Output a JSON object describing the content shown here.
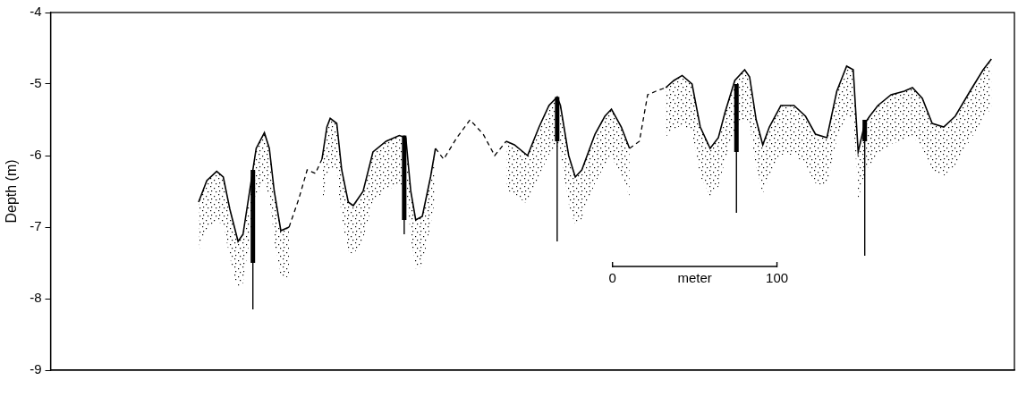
{
  "chart_data": {
    "type": "line",
    "y_label": "Depth (m)",
    "xlim": [
      0,
      586
    ],
    "ylim": [
      -9,
      -4
    ],
    "yticks": [
      -9,
      -8,
      -7,
      -6,
      -5,
      -4
    ],
    "grid": false,
    "tick_labels": "y",
    "color": "#000000",
    "series": [
      {
        "line_style": "solid",
        "x": [
          90,
          95,
          101,
          105,
          109,
          114,
          117,
          121,
          125,
          130,
          133,
          136,
          140,
          145
        ],
        "values": [
          -6.65,
          -6.35,
          -6.22,
          -6.3,
          -6.75,
          -7.2,
          -7.1,
          -6.5,
          -5.9,
          -5.68,
          -5.9,
          -6.5,
          -7.05,
          -7.0
        ]
      },
      {
        "line_style": "dashed",
        "x": [
          145,
          151,
          156,
          161,
          165
        ],
        "values": [
          -7.0,
          -6.6,
          -6.2,
          -6.25,
          -6.05
        ]
      },
      {
        "line_style": "solid",
        "x": [
          165,
          168,
          170,
          174,
          177,
          181,
          184,
          190,
          196,
          204,
          212,
          216,
          219,
          222,
          226,
          231,
          234
        ],
        "values": [
          -6.05,
          -5.6,
          -5.48,
          -5.55,
          -6.2,
          -6.65,
          -6.7,
          -6.5,
          -5.95,
          -5.8,
          -5.72,
          -5.75,
          -6.5,
          -6.9,
          -6.85,
          -6.3,
          -5.9
        ]
      },
      {
        "line_style": "dashed",
        "x": [
          234,
          239,
          247,
          255,
          263,
          270,
          277
        ],
        "values": [
          -5.9,
          -6.05,
          -5.75,
          -5.5,
          -5.7,
          -6.0,
          -5.8
        ]
      },
      {
        "line_style": "solid",
        "x": [
          277,
          282,
          290,
          297,
          303,
          308,
          310,
          315,
          319,
          323,
          331,
          337,
          341,
          347,
          352
        ],
        "values": [
          -5.8,
          -5.85,
          -6.0,
          -5.6,
          -5.3,
          -5.18,
          -5.3,
          -6.0,
          -6.3,
          -6.2,
          -5.7,
          -5.45,
          -5.35,
          -5.6,
          -5.9
        ]
      },
      {
        "line_style": "dashed",
        "x": [
          352,
          358,
          363,
          368,
          374
        ],
        "values": [
          -5.9,
          -5.8,
          -5.15,
          -5.1,
          -5.05
        ]
      },
      {
        "line_style": "solid",
        "x": [
          374,
          379,
          384,
          390,
          395,
          401,
          406,
          410,
          416,
          422,
          425,
          429,
          433,
          437,
          444,
          452,
          459,
          465,
          472,
          478,
          484,
          488,
          491,
          495,
          498,
          503,
          511,
          519,
          524,
          530,
          536,
          543,
          550,
          559,
          567,
          572
        ],
        "values": [
          -5.05,
          -4.95,
          -4.88,
          -5.0,
          -5.6,
          -5.9,
          -5.75,
          -5.4,
          -4.95,
          -4.8,
          -4.9,
          -5.5,
          -5.85,
          -5.6,
          -5.3,
          -5.3,
          -5.45,
          -5.7,
          -5.75,
          -5.1,
          -4.75,
          -4.8,
          -5.95,
          -5.55,
          -5.45,
          -5.3,
          -5.15,
          -5.1,
          -5.05,
          -5.2,
          -5.55,
          -5.6,
          -5.45,
          -5.1,
          -4.8,
          -4.65
        ]
      }
    ],
    "cores": [
      {
        "x": 123,
        "top": -6.2,
        "thick_bottom": -7.5,
        "bottom": -8.15
      },
      {
        "x": 215,
        "top": -5.72,
        "thick_bottom": -6.9,
        "bottom": -7.1
      },
      {
        "x": 308,
        "top": -5.18,
        "thick_bottom": -5.8,
        "bottom": -7.2
      },
      {
        "x": 417,
        "top": -5.0,
        "thick_bottom": -5.95,
        "bottom": -6.8
      },
      {
        "x": 495,
        "top": -5.5,
        "thick_bottom": -5.8,
        "bottom": -7.4
      }
    ],
    "scale_bar": {
      "start": 0,
      "end": 100,
      "label": "meter"
    }
  }
}
